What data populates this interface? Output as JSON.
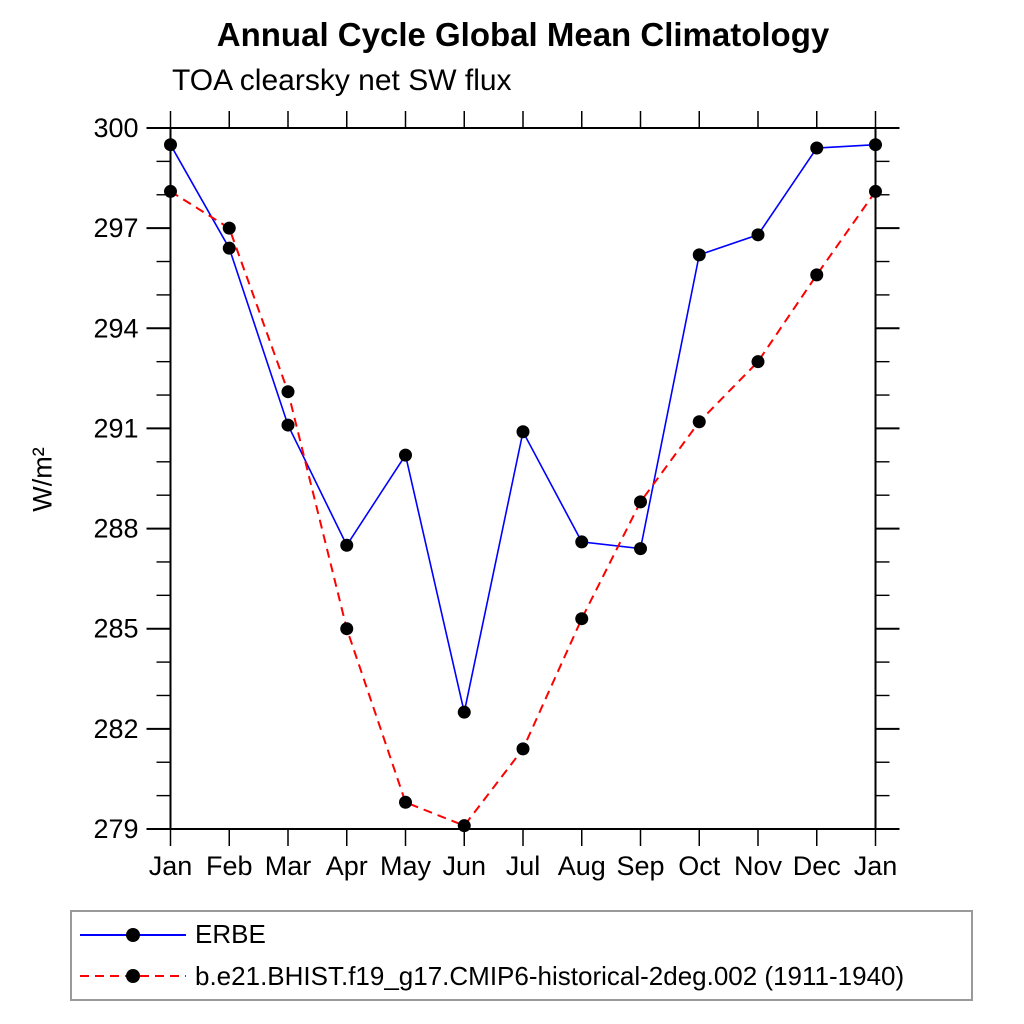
{
  "chart_data": {
    "type": "line",
    "title": "Annual Cycle Global Mean Climatology",
    "subtitle": "TOA clearsky net SW flux",
    "ylabel": "W/m²",
    "xlabel": "",
    "categories": [
      "Jan",
      "Feb",
      "Mar",
      "Apr",
      "May",
      "Jun",
      "Jul",
      "Aug",
      "Sep",
      "Oct",
      "Nov",
      "Dec",
      "Jan"
    ],
    "ylim": [
      279,
      300
    ],
    "yticks_major": [
      279,
      282,
      285,
      288,
      291,
      294,
      297,
      300
    ],
    "ytick_minor_step": 1,
    "grid": false,
    "legend_position": "bottom-left-box",
    "frame_color": "#000000",
    "marker_color": "#000000",
    "series": [
      {
        "name": "ERBE",
        "color": "#0000ff",
        "style": "solid",
        "marker": "circle",
        "values": [
          299.5,
          296.4,
          291.1,
          287.5,
          290.2,
          282.5,
          290.9,
          287.6,
          287.4,
          296.2,
          296.8,
          299.4,
          299.5
        ]
      },
      {
        "name": "b.e21.BHIST.f19_g17.CMIP6-historical-2deg.002 (1911-1940)",
        "color": "#ff0000",
        "style": "dashed",
        "marker": "circle",
        "values": [
          298.1,
          297.0,
          292.1,
          285.0,
          279.8,
          279.1,
          281.4,
          285.3,
          288.8,
          291.2,
          293.0,
          295.6,
          298.1
        ]
      }
    ]
  }
}
